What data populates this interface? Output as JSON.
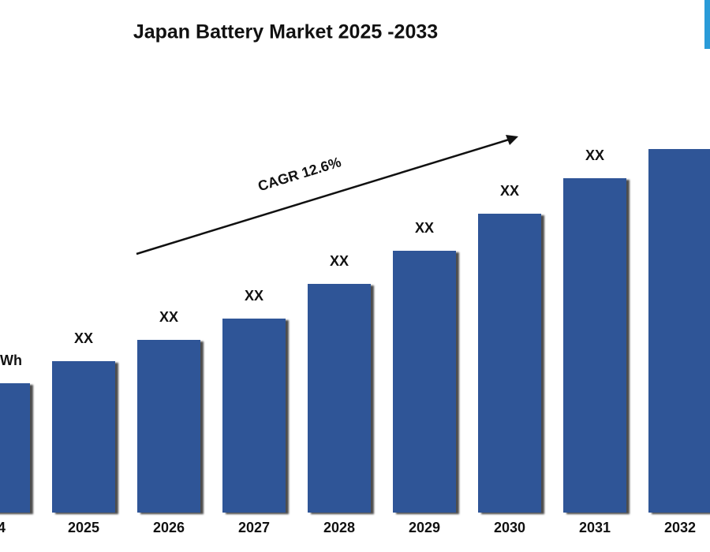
{
  "chart_data": {
    "type": "bar",
    "title": "Japan Battery Market  2025 -2033",
    "annotation": "CAGR 12.6%",
    "categories": [
      "4",
      "2025",
      "2026",
      "2027",
      "2028",
      "2029",
      "2030",
      "2031",
      "2032"
    ],
    "values": [
      164,
      192,
      219,
      246,
      290,
      332,
      379,
      424,
      461
    ],
    "value_labels": [
      "Wh",
      "XX",
      "XX",
      "XX",
      "XX",
      "XX",
      "XX",
      "XX",
      null
    ],
    "color": "#2f5597",
    "ylim": [
      0,
      500
    ]
  }
}
